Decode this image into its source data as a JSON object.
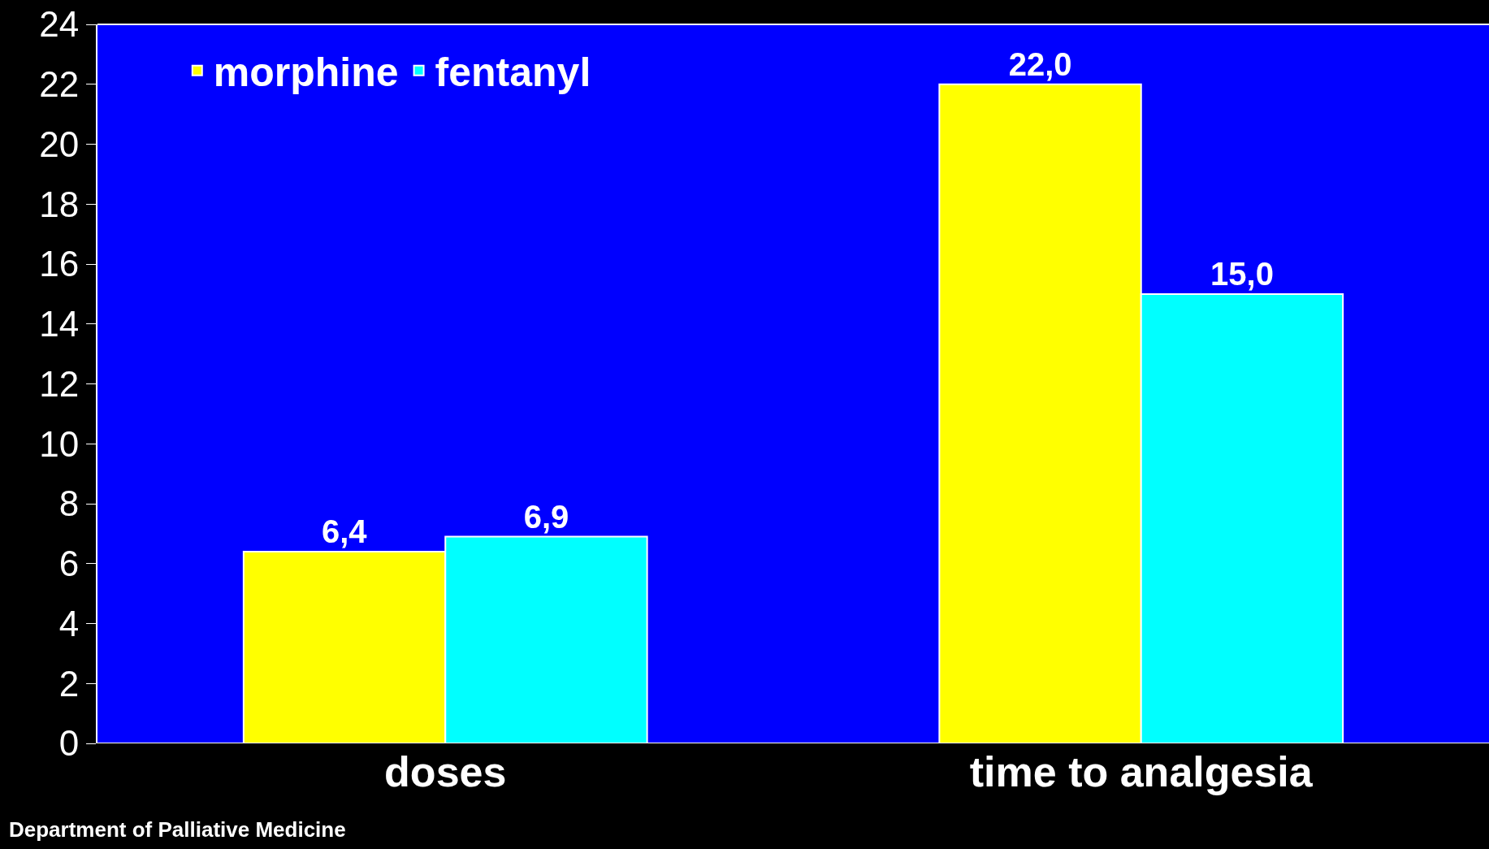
{
  "chart_data": {
    "type": "bar",
    "categories": [
      "doses",
      "time to analgesia"
    ],
    "series": [
      {
        "name": "morphine",
        "color": "#ffff00",
        "values": [
          6.4,
          22.0
        ],
        "value_labels": [
          "6,4",
          "22,0"
        ]
      },
      {
        "name": "fentanyl",
        "color": "#00ffff",
        "values": [
          6.9,
          15.0
        ],
        "value_labels": [
          "6,9",
          "15,0"
        ]
      }
    ],
    "ylim": [
      0,
      24
    ],
    "yticks": [
      0,
      2,
      4,
      6,
      8,
      10,
      12,
      14,
      16,
      18,
      20,
      22,
      24
    ],
    "grid": false,
    "legend": "top left",
    "annotations": [
      "Department of Palliative Medicine"
    ]
  }
}
